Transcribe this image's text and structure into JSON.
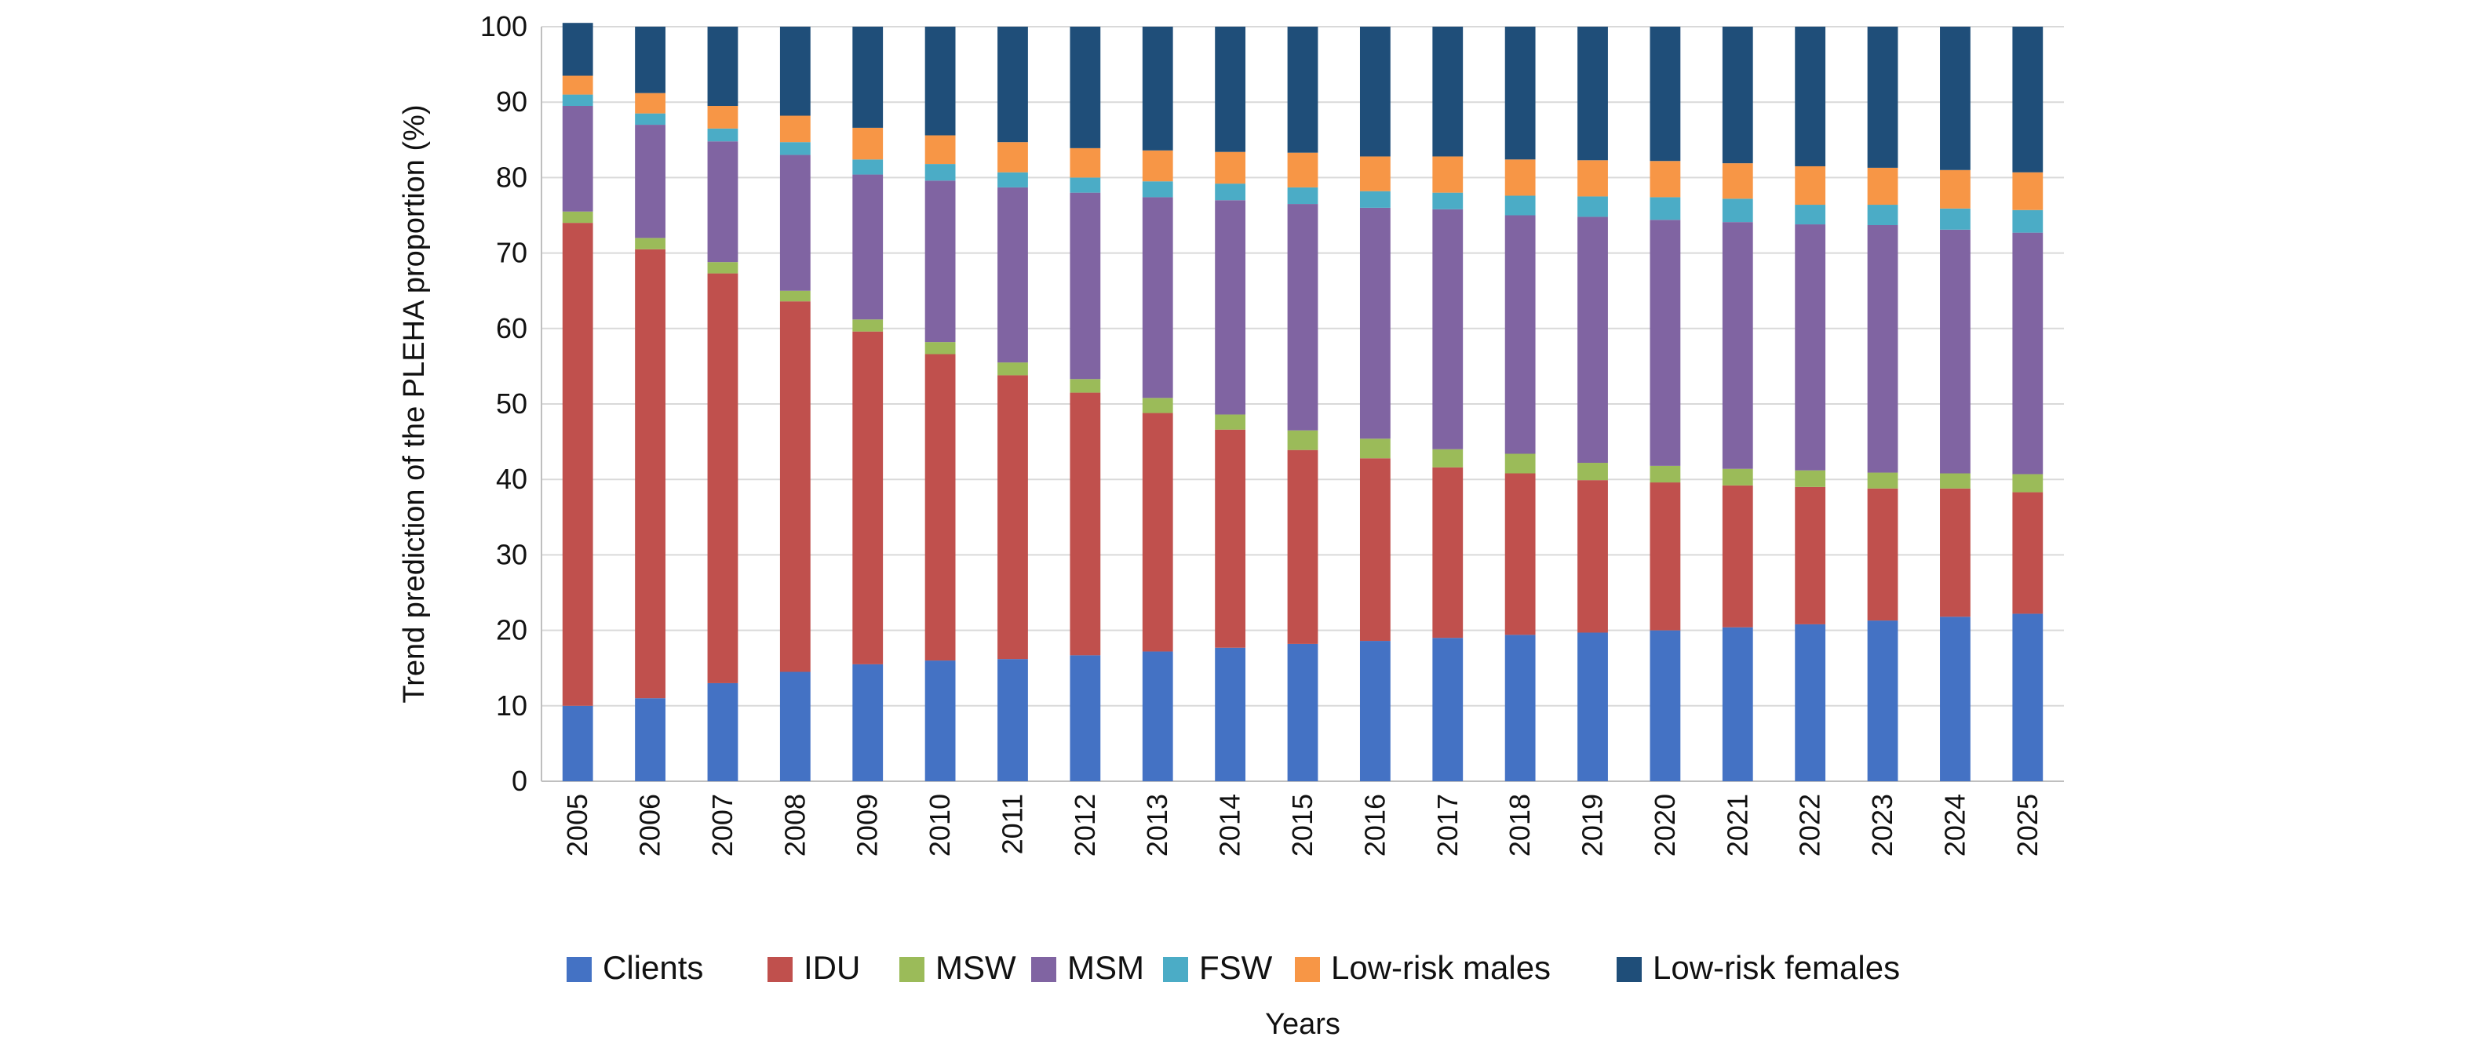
{
  "chart_data": {
    "type": "bar",
    "stacked": true,
    "normalized": true,
    "xlabel": "Years",
    "ylabel": "Trend prediction of the PLEHA proportion (%)",
    "ylim": [
      0,
      100
    ],
    "yticks": [
      0,
      10,
      20,
      30,
      40,
      50,
      60,
      70,
      80,
      90,
      100
    ],
    "grid": true,
    "legend_position": "bottom",
    "categories": [
      "2005",
      "2006",
      "2007",
      "2008",
      "2009",
      "2010",
      "2011",
      "2012",
      "2013",
      "2014",
      "2015",
      "2016",
      "2017",
      "2018",
      "2019",
      "2020",
      "2021",
      "2022",
      "2023",
      "2024",
      "2025"
    ],
    "series": [
      {
        "name": "Clients",
        "color": "#4472C4",
        "values": [
          10,
          11,
          13,
          14.5,
          15.5,
          16,
          16.2,
          16.7,
          17.2,
          17.7,
          18.2,
          18.6,
          19,
          19.4,
          19.7,
          20,
          20.4,
          20.8,
          21.3,
          21.8,
          22.2
        ]
      },
      {
        "name": "IDU",
        "color": "#C0504D",
        "values": [
          64,
          59.5,
          54.3,
          49.1,
          44.1,
          40.6,
          37.6,
          34.8,
          31.6,
          28.9,
          25.7,
          24.2,
          22.6,
          21.4,
          20.2,
          19.6,
          18.8,
          18.2,
          17.5,
          17,
          16.1
        ]
      },
      {
        "name": "MSW",
        "color": "#9BBB59",
        "values": [
          1.5,
          1.5,
          1.5,
          1.4,
          1.6,
          1.6,
          1.7,
          1.8,
          2,
          2,
          2.6,
          2.6,
          2.4,
          2.6,
          2.3,
          2.2,
          2.2,
          2.2,
          2.1,
          2,
          2.4
        ]
      },
      {
        "name": "MSM",
        "color": "#8064A2",
        "values": [
          14,
          15,
          16,
          18,
          19.2,
          21.4,
          23.2,
          24.7,
          26.6,
          28.4,
          30,
          30.6,
          31.8,
          31.6,
          32.6,
          32.6,
          32.7,
          32.6,
          32.8,
          32.3,
          32
        ]
      },
      {
        "name": "FSW",
        "color": "#4BACC6",
        "values": [
          1.5,
          1.5,
          1.7,
          1.7,
          2,
          2.2,
          2,
          2,
          2.1,
          2.2,
          2.2,
          2.2,
          2.2,
          2.6,
          2.7,
          3,
          3.1,
          2.6,
          2.7,
          2.8,
          3
        ]
      },
      {
        "name": "Low-risk males",
        "color": "#F79646",
        "values": [
          2.5,
          2.7,
          3,
          3.5,
          4.2,
          3.8,
          4,
          3.9,
          4.1,
          4.2,
          4.6,
          4.6,
          4.8,
          4.8,
          4.8,
          4.8,
          4.7,
          5.1,
          4.9,
          5.1,
          5
        ]
      },
      {
        "name": "Low-risk females",
        "color": "#1F4E79",
        "values": [
          7,
          8.8,
          10.5,
          11.8,
          13.4,
          14.4,
          15.3,
          16.1,
          16.4,
          16.6,
          16.7,
          17.2,
          17.2,
          17.6,
          17.7,
          17.8,
          18.1,
          18.5,
          18.7,
          19,
          19.3
        ]
      }
    ]
  }
}
